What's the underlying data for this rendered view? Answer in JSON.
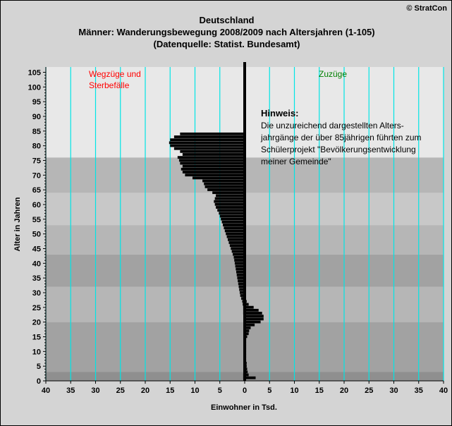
{
  "header": {
    "title_line1": "Deutschland",
    "title_line2": "Männer: Wanderungsbewegung 2008/2009 nach Altersjahren (1-105)",
    "title_line3": "(Datenquelle: Statist. Bundesamt)",
    "copyright": "© StratCon"
  },
  "chart_data": {
    "type": "bar",
    "orientation": "horizontal-population-pyramid",
    "xlabel": "Einwohner in Tsd.",
    "ylabel": "Alter in Jahren",
    "x_tick_labels": [
      "40",
      "35",
      "30",
      "25",
      "20",
      "15",
      "10",
      "5",
      "0",
      "5",
      "10",
      "15",
      "20",
      "25",
      "30",
      "35",
      "40"
    ],
    "y_ticks": [
      0,
      5,
      10,
      15,
      20,
      25,
      30,
      35,
      40,
      45,
      50,
      55,
      60,
      65,
      70,
      75,
      80,
      85,
      90,
      95,
      100,
      105
    ],
    "xlim": [
      -40,
      40
    ],
    "ylim": [
      0,
      106
    ],
    "grid": "vertical lines every 5 Tsd.",
    "colors": {
      "bars": "#000000",
      "gridlines": "#00e5e5",
      "left_label": "#ff0000",
      "right_label": "#008000",
      "bands": [
        "#8f8f8f",
        "#a2a2a2",
        "#b6b6b6",
        "#c8c8c8",
        "#d8d8d8",
        "#e8e8e8"
      ]
    },
    "annotations": {
      "left": [
        "Wegzüge und",
        "Sterbefälle"
      ],
      "right": "Zuzüge",
      "note_title": "Hinweis:",
      "note_lines": [
        "Die unzureichend dargestellten Alters-",
        "jahrgänge der über 85jährigen führten zum",
        "Schülerprojekt \"Bevölkerungsentwicklung",
        "meiner Gemeinde\""
      ]
    },
    "series": [
      {
        "name": "Wegzüge und Sterbefälle",
        "ages": [
          1,
          2,
          3,
          4,
          5,
          6,
          7,
          8,
          9,
          10,
          11,
          12,
          13,
          14,
          15,
          16,
          17,
          18,
          19,
          20,
          21,
          22,
          23,
          24,
          25,
          26,
          27,
          28,
          29,
          30,
          31,
          32,
          33,
          34,
          35,
          36,
          37,
          38,
          39,
          40,
          41,
          42,
          43,
          44,
          45,
          46,
          47,
          48,
          49,
          50,
          51,
          52,
          53,
          54,
          55,
          56,
          57,
          58,
          59,
          60,
          61,
          62,
          63,
          64,
          65,
          66,
          67,
          68,
          69,
          70,
          71,
          72,
          73,
          74,
          75,
          76,
          77,
          78,
          79,
          80,
          81,
          82,
          83,
          84
        ],
        "values": [
          -0.3,
          -0.3,
          -0.2,
          -0.2,
          -0.2,
          -0.2,
          -0.2,
          -0.2,
          -0.2,
          -0.2,
          -0.2,
          -0.2,
          -0.2,
          -0.2,
          -0.2,
          -0.2,
          -0.2,
          -0.2,
          -0.2,
          -0.2,
          -0.2,
          -0.2,
          -0.3,
          -0.3,
          -0.3,
          -0.4,
          -0.5,
          -0.7,
          -0.9,
          -1.0,
          -1.1,
          -1.2,
          -1.3,
          -1.4,
          -1.5,
          -1.6,
          -1.7,
          -1.8,
          -1.9,
          -2.0,
          -2.1,
          -2.2,
          -2.4,
          -2.6,
          -2.8,
          -3.0,
          -3.2,
          -3.4,
          -3.6,
          -3.8,
          -4.0,
          -4.2,
          -4.4,
          -4.6,
          -4.8,
          -5.0,
          -5.2,
          -5.5,
          -5.8,
          -6.0,
          -6.2,
          -6.0,
          -5.8,
          -6.5,
          -7.5,
          -8.0,
          -8.2,
          -8.5,
          -10.5,
          -12.0,
          -12.5,
          -12.8,
          -12.5,
          -13.0,
          -13.2,
          -13.5,
          -12.5,
          -13.0,
          -14.2,
          -15.0,
          -15.2,
          -15.0,
          -14.2,
          -13.0
        ]
      },
      {
        "name": "Zuzüge",
        "ages": [
          1,
          2,
          3,
          4,
          5,
          6,
          7,
          8,
          9,
          10,
          11,
          12,
          13,
          14,
          15,
          16,
          17,
          18,
          19,
          20,
          21,
          22,
          23,
          24,
          25,
          26,
          27,
          28,
          29
        ],
        "values": [
          2.2,
          0.8,
          0.6,
          0.5,
          0.4,
          0.4,
          0.3,
          0.3,
          0.3,
          0.3,
          0.3,
          0.3,
          0.3,
          0.3,
          0.5,
          0.8,
          0.9,
          1.2,
          2.0,
          3.2,
          3.8,
          3.8,
          3.5,
          2.8,
          1.8,
          0.8,
          0.4,
          0.2,
          0.1
        ]
      }
    ]
  }
}
